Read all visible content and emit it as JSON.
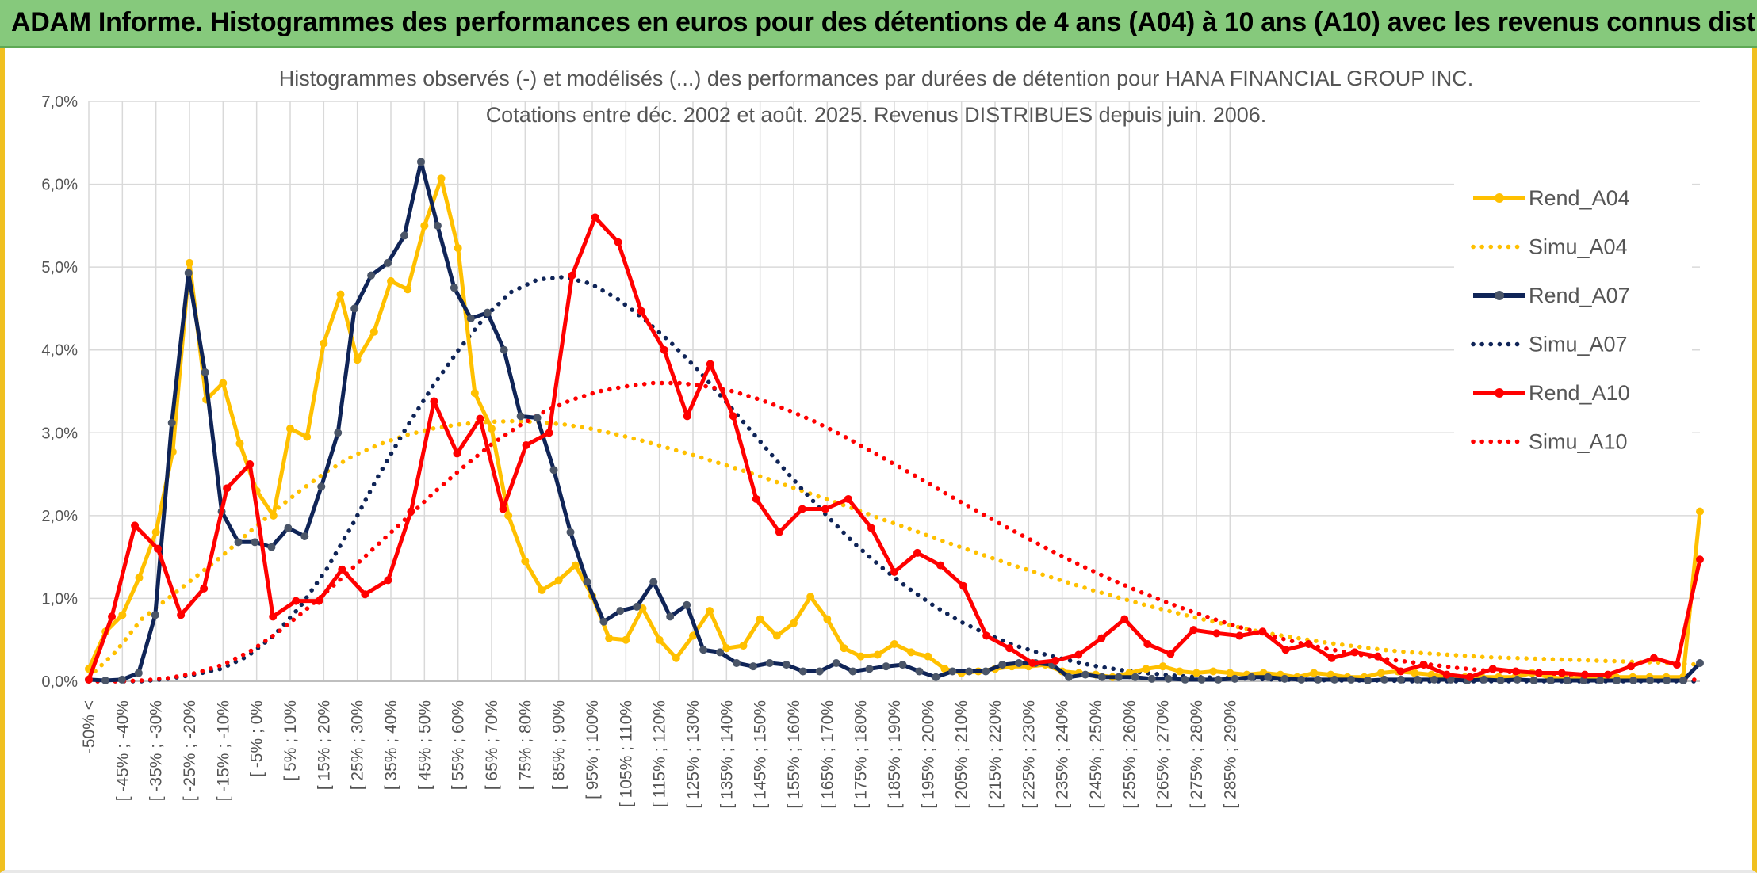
{
  "banner": {
    "title": "ADAM Informe. Histogrammes des performances en euros pour des détentions de 4 ans (A04) à 10 ans (A10) avec les revenus connus distribués"
  },
  "chart_data": {
    "type": "line",
    "title_lines": [
      "Histogrammes observés (-) et modélisés (...) des performances par durées de détention pour HANA FINANCIAL GROUP INC.",
      "Cotations entre déc. 2002 et août. 2025. Revenus DISTRIBUES depuis juin. 2006."
    ],
    "xlabel": "",
    "ylabel": "",
    "ylim": [
      0,
      7
    ],
    "y_ticks": [
      "0,0%",
      "1,0%",
      "2,0%",
      "3,0%",
      "4,0%",
      "5,0%",
      "6,0%",
      "7,0%"
    ],
    "grid": true,
    "legend_position": "right",
    "category_labels": [
      "-50% <",
      "[ -45% ; -40%",
      "[ -35% ; -30%",
      "[ -25% ; -20%",
      "[ -15% ; -10%",
      "[ -5% ; 0%",
      "[ 5% ; 10%",
      "[ 15% ; 20%",
      "[ 25% ; 30%",
      "[ 35% ; 40%",
      "[ 45% ; 50%",
      "[ 55% ; 60%",
      "[ 65% ; 70%",
      "[ 75% ; 80%",
      "[ 85% ; 90%",
      "[ 95% ; 100%",
      "[ 105% ; 110%",
      "[ 115% ; 120%",
      "[ 125% ; 130%",
      "[ 135% ; 140%",
      "[ 145% ; 150%",
      "[ 155% ; 160%",
      "[ 165% ; 170%",
      "[ 175% ; 180%",
      "[ 185% ; 190%",
      "[ 195% ; 200%",
      "[ 205% ; 210%",
      "[ 215% ; 220%",
      "[ 225% ; 230%",
      "[ 235% ; 240%",
      "[ 245% ; 250%",
      "[ 255% ; 260%",
      "[ 265% ; 270%",
      "[ 275% ; 280%",
      "[ 285% ; 290%"
    ],
    "series": [
      {
        "name": "Rend_A04",
        "style": "solid",
        "color": "#ffc000",
        "values": [
          0.15,
          0.6,
          0.8,
          1.25,
          1.8,
          2.77,
          5.05,
          3.4,
          3.6,
          2.87,
          2.3,
          2.0,
          3.05,
          2.95,
          4.08,
          4.67,
          3.88,
          4.22,
          4.83,
          4.73,
          5.5,
          6.07,
          5.23,
          3.48,
          3.05,
          2.0,
          1.45,
          1.1,
          1.22,
          1.4,
          1.03,
          0.52,
          0.5,
          0.88,
          0.5,
          0.28,
          0.55,
          0.85,
          0.4,
          0.43,
          0.75,
          0.55,
          0.7,
          1.02,
          0.75,
          0.4,
          0.3,
          0.32,
          0.45,
          0.35,
          0.3,
          0.15,
          0.1,
          0.12,
          0.15,
          0.18,
          0.18,
          0.2,
          0.12,
          0.1,
          0.08,
          0.05,
          0.1,
          0.15,
          0.18,
          0.12,
          0.1,
          0.12,
          0.1,
          0.08,
          0.1,
          0.08,
          0.05,
          0.1,
          0.08,
          0.05,
          0.05,
          0.1,
          0.12,
          0.1,
          0.08,
          0.05,
          0.05,
          0.05,
          0.05,
          0.05,
          0.1,
          0.05,
          0.03,
          0.05,
          0.05,
          0.05,
          0.05,
          0.05,
          0.05,
          0.05,
          2.05
        ]
      },
      {
        "name": "Simu_A04",
        "style": "dotted",
        "color": "#ffc000",
        "values": [
          0.05,
          0.35,
          0.75,
          1.0,
          1.25,
          1.5,
          1.78,
          2.05,
          2.3,
          2.53,
          2.72,
          2.86,
          2.97,
          3.05,
          3.1,
          3.13,
          3.14,
          3.13,
          3.1,
          3.05,
          2.98,
          2.9,
          2.81,
          2.72,
          2.62,
          2.52,
          2.41,
          2.3,
          2.19,
          2.08,
          1.96,
          1.85,
          1.73,
          1.62,
          1.51,
          1.4,
          1.3,
          1.2,
          1.1,
          1.01,
          0.92,
          0.84,
          0.76,
          0.69,
          0.62,
          0.56,
          0.51,
          0.46,
          0.42,
          0.38,
          0.35,
          0.33,
          0.31,
          0.29,
          0.28,
          0.27,
          0.26,
          0.25,
          0.24,
          0.23,
          0.22,
          0.2
        ]
      },
      {
        "name": "Rend_A07",
        "style": "solid",
        "color": "#0f2457",
        "values": [
          0.02,
          0.01,
          0.02,
          0.1,
          0.8,
          3.12,
          4.93,
          3.73,
          2.05,
          1.68,
          1.68,
          1.62,
          1.85,
          1.75,
          2.35,
          3.0,
          4.5,
          4.9,
          5.05,
          5.38,
          6.27,
          5.5,
          4.75,
          4.38,
          4.45,
          4.0,
          3.2,
          3.18,
          2.55,
          1.8,
          1.2,
          0.72,
          0.85,
          0.9,
          1.2,
          0.78,
          0.92,
          0.38,
          0.35,
          0.22,
          0.18,
          0.22,
          0.2,
          0.12,
          0.12,
          0.22,
          0.12,
          0.15,
          0.18,
          0.2,
          0.12,
          0.05,
          0.12,
          0.12,
          0.12,
          0.2,
          0.22,
          0.22,
          0.2,
          0.05,
          0.08,
          0.05,
          0.05,
          0.05,
          0.03,
          0.03,
          0.02,
          0.02,
          0.02,
          0.03,
          0.05,
          0.05,
          0.03,
          0.02,
          0.02,
          0.02,
          0.02,
          0.01,
          0.02,
          0.02,
          0.02,
          0.02,
          0.02,
          0.01,
          0.02,
          0.01,
          0.02,
          0.01,
          0.01,
          0.01,
          0.01,
          0.01,
          0.01,
          0.01,
          0.01,
          0.01,
          0.01,
          0.22
        ]
      },
      {
        "name": "Simu_A07",
        "style": "dotted",
        "color": "#0f2457",
        "values": [
          0.0,
          0.0,
          0.0,
          0.03,
          0.08,
          0.15,
          0.3,
          0.55,
          0.9,
          1.35,
          1.9,
          2.5,
          3.05,
          3.55,
          4.0,
          4.4,
          4.7,
          4.85,
          4.88,
          4.8,
          4.62,
          4.38,
          4.1,
          3.78,
          3.42,
          3.05,
          2.68,
          2.32,
          1.98,
          1.66,
          1.38,
          1.13,
          0.91,
          0.72,
          0.57,
          0.44,
          0.34,
          0.26,
          0.19,
          0.14,
          0.1,
          0.07,
          0.05,
          0.04,
          0.03,
          0.02,
          0.02,
          0.01,
          0.01,
          0.01,
          0.0,
          0.0,
          0.0,
          0.0,
          0.0,
          0.0,
          0.0,
          0.0,
          0.0,
          0.0,
          0.0,
          0.0
        ]
      },
      {
        "name": "Rend_A10",
        "style": "solid",
        "color": "#ff0000",
        "values": [
          0.02,
          0.78,
          1.88,
          1.6,
          0.8,
          1.12,
          2.33,
          2.62,
          0.78,
          0.97,
          0.97,
          1.35,
          1.05,
          1.22,
          2.05,
          3.38,
          2.75,
          3.17,
          2.08,
          2.85,
          3.0,
          4.9,
          5.6,
          5.3,
          4.47,
          4.0,
          3.2,
          3.83,
          3.2,
          2.2,
          1.8,
          2.08,
          2.08,
          2.2,
          1.85,
          1.32,
          1.55,
          1.4,
          1.15,
          0.55,
          0.4,
          0.22,
          0.25,
          0.32,
          0.52,
          0.75,
          0.45,
          0.33,
          0.62,
          0.58,
          0.55,
          0.6,
          0.38,
          0.45,
          0.28,
          0.35,
          0.3,
          0.12,
          0.2,
          0.08,
          0.05,
          0.15,
          0.12,
          0.1,
          0.1,
          0.08,
          0.08,
          0.18,
          0.28,
          0.2,
          1.47
        ]
      },
      {
        "name": "Simu_A10",
        "style": "dotted",
        "color": "#ff0000",
        "values": [
          0.0,
          0.0,
          0.01,
          0.04,
          0.1,
          0.2,
          0.36,
          0.58,
          0.84,
          1.12,
          1.42,
          1.72,
          2.02,
          2.32,
          2.6,
          2.86,
          3.08,
          3.26,
          3.4,
          3.5,
          3.56,
          3.6,
          3.6,
          3.56,
          3.5,
          3.4,
          3.28,
          3.14,
          2.98,
          2.8,
          2.62,
          2.44,
          2.25,
          2.07,
          1.89,
          1.72,
          1.55,
          1.39,
          1.24,
          1.1,
          0.97,
          0.85,
          0.74,
          0.64,
          0.55,
          0.47,
          0.4,
          0.34,
          0.28,
          0.24,
          0.2,
          0.16,
          0.13,
          0.11,
          0.09,
          0.07,
          0.05,
          0.04,
          0.03,
          0.02,
          0.02
        ]
      }
    ]
  }
}
